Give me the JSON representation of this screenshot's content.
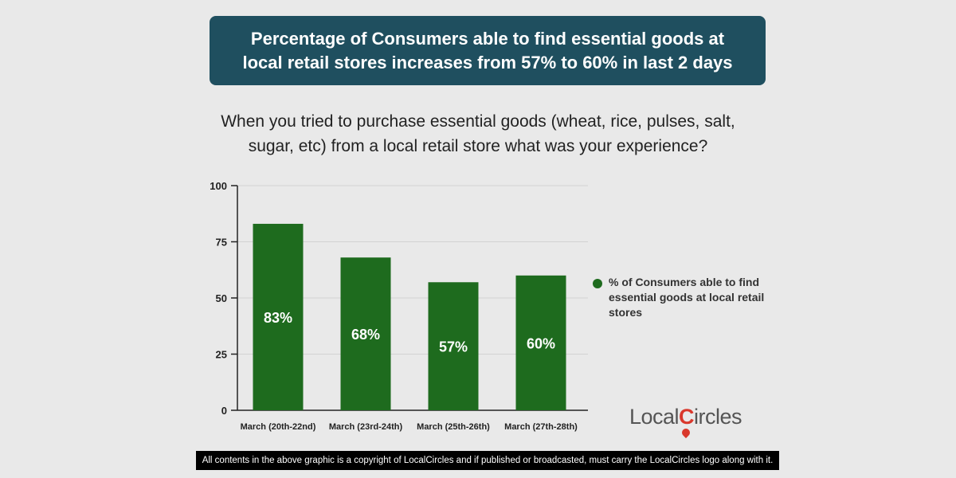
{
  "header": {
    "title_line1": "Percentage of Consumers able to find essential goods at",
    "title_line2": "local retail stores increases from 57% to 60% in last 2 days",
    "subtitle_line1": "When you tried to purchase essential goods (wheat, rice, pulses, salt,",
    "subtitle_line2": "sugar, etc) from a local retail store what was your experience?"
  },
  "chart_data": {
    "type": "bar",
    "categories": [
      "March (20th-22nd)",
      "March (23rd-24th)",
      "March (25th-26th)",
      "March (27th-28th)"
    ],
    "series": [
      {
        "name": "% of Consumers able to find essential goods at local retail stores",
        "values": [
          83,
          68,
          57,
          60
        ],
        "labels": [
          "83%",
          "68%",
          "57%",
          "60%"
        ],
        "color": "#1e6b1e"
      }
    ],
    "yticks": [
      0,
      25,
      50,
      75,
      100
    ],
    "ylim": [
      0,
      100
    ],
    "grid": true,
    "legend_position": "right"
  },
  "legend": {
    "text": "% of Consumers able to find essential goods at local retail stores"
  },
  "logo": {
    "part1": "Local",
    "part2": "C",
    "part3": "ircles"
  },
  "footer": {
    "text": "All contents in the above graphic is a copyright of LocalCircles and if published or broadcasted, must carry the LocalCircles logo along with it."
  }
}
